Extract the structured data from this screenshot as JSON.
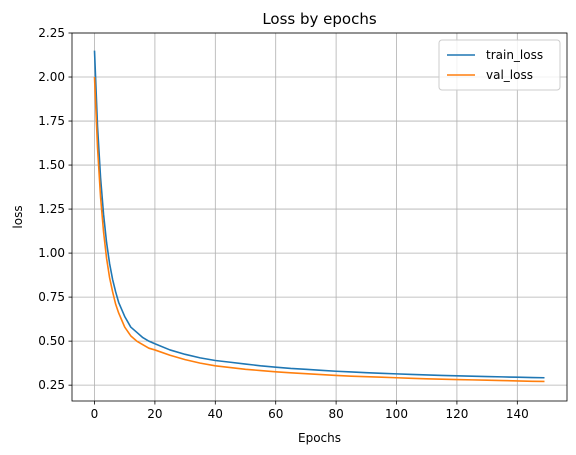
{
  "chart_data": {
    "type": "line",
    "title": "Loss by epochs",
    "xlabel": "Epochs",
    "ylabel": "loss",
    "xlim": [
      -7.45,
      156.45
    ],
    "ylim": [
      0.16,
      2.25
    ],
    "xticks": [
      0,
      20,
      40,
      60,
      80,
      100,
      120,
      140
    ],
    "yticks": [
      0.25,
      0.5,
      0.75,
      1.0,
      1.25,
      1.5,
      1.75,
      2.0,
      2.25
    ],
    "grid": true,
    "legend_position": "top-right",
    "x": [
      0,
      1,
      2,
      3,
      4,
      5,
      6,
      7,
      8,
      9,
      10,
      12,
      14,
      16,
      18,
      20,
      25,
      30,
      35,
      40,
      45,
      50,
      55,
      60,
      65,
      70,
      75,
      80,
      85,
      90,
      95,
      100,
      105,
      110,
      115,
      120,
      125,
      130,
      135,
      140,
      145,
      149
    ],
    "series": [
      {
        "name": "train_loss",
        "color": "#1f77b4",
        "values": [
          2.15,
          1.72,
          1.43,
          1.22,
          1.06,
          0.94,
          0.85,
          0.78,
          0.72,
          0.68,
          0.64,
          0.58,
          0.55,
          0.52,
          0.5,
          0.485,
          0.45,
          0.425,
          0.405,
          0.39,
          0.38,
          0.37,
          0.36,
          0.352,
          0.345,
          0.34,
          0.334,
          0.329,
          0.325,
          0.321,
          0.317,
          0.314,
          0.311,
          0.308,
          0.305,
          0.303,
          0.301,
          0.299,
          0.297,
          0.295,
          0.293,
          0.292
        ]
      },
      {
        "name": "val_loss",
        "color": "#ff7f0e",
        "values": [
          2.0,
          1.6,
          1.32,
          1.12,
          0.97,
          0.86,
          0.78,
          0.71,
          0.66,
          0.62,
          0.58,
          0.53,
          0.5,
          0.48,
          0.46,
          0.45,
          0.42,
          0.395,
          0.375,
          0.36,
          0.35,
          0.34,
          0.333,
          0.326,
          0.32,
          0.315,
          0.31,
          0.305,
          0.301,
          0.298,
          0.295,
          0.292,
          0.289,
          0.286,
          0.284,
          0.282,
          0.28,
          0.278,
          0.276,
          0.274,
          0.272,
          0.271
        ]
      }
    ]
  }
}
